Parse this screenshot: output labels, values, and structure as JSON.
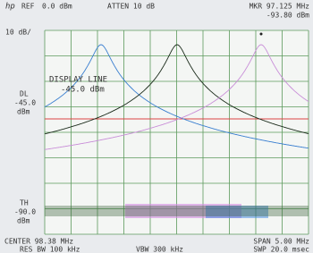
{
  "header": {
    "brand": "hp",
    "ref_label": "REF",
    "ref_value": "0.0 dBm",
    "atten": "ATTEN 10 dB",
    "marker_freq": "MKR 97.125 MHz",
    "marker_level": "-93.80 dBm"
  },
  "scale": "10 dB/",
  "display_line": {
    "title": "DISPLAY LINE",
    "value": "-45.0 dBm",
    "side_label": "DL",
    "side_value": "-45.0",
    "side_unit": "dBm"
  },
  "threshold": {
    "label": "TH",
    "value": "-90.0",
    "unit": "dBm"
  },
  "footer": {
    "center": "CENTER 98.38 MHz",
    "span": "SPAN 5.00 MHz",
    "res_bw": "RES BW 100 kHz",
    "vbw": "VBW 300 kHz",
    "sweep": "SWP 20.0 msec"
  }
}
